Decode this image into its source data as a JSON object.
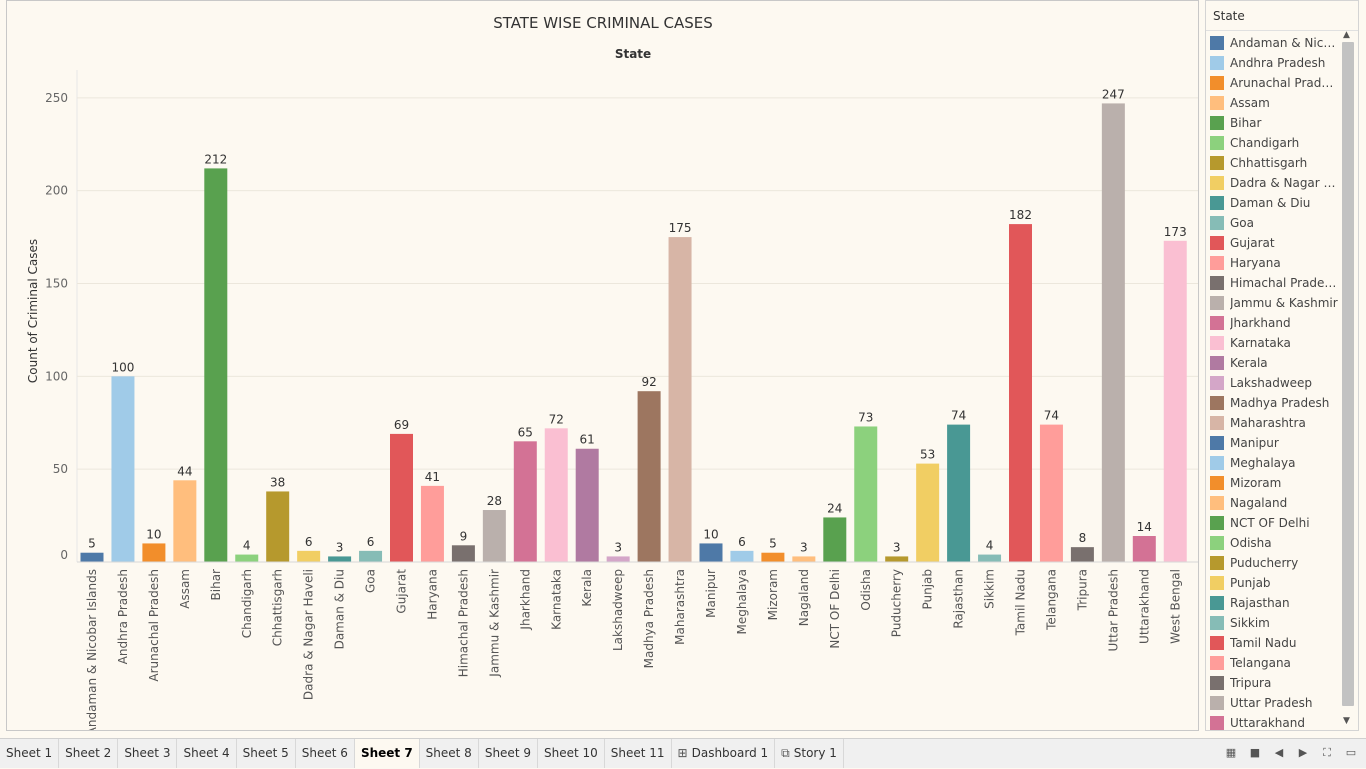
{
  "chart_data": {
    "type": "bar",
    "title": "STATE WISE CRIMINAL CASES",
    "subtitle": "State",
    "ylabel": "Count of Criminal Cases",
    "ylim": [
      0,
      265
    ],
    "yticks": [
      0,
      50,
      100,
      150,
      200,
      250
    ],
    "grid": true,
    "legend_position": "right",
    "categories": [
      "Andaman & Nicobar Islands",
      "Andhra Pradesh",
      "Arunachal Pradesh",
      "Assam",
      "Bihar",
      "Chandigarh",
      "Chhattisgarh",
      "Dadra & Nagar Haveli",
      "Daman & Diu",
      "Goa",
      "Gujarat",
      "Haryana",
      "Himachal Pradesh",
      "Jammu & Kashmir",
      "Jharkhand",
      "Karnataka",
      "Kerala",
      "Lakshadweep",
      "Madhya Pradesh",
      "Maharashtra",
      "Manipur",
      "Meghalaya",
      "Mizoram",
      "Nagaland",
      "NCT OF Delhi",
      "Odisha",
      "Puducherry",
      "Punjab",
      "Rajasthan",
      "Sikkim",
      "Tamil Nadu",
      "Telangana",
      "Tripura",
      "Uttar Pradesh",
      "Uttarakhand",
      "West Bengal"
    ],
    "values": [
      5,
      100,
      10,
      44,
      212,
      4,
      38,
      6,
      3,
      6,
      69,
      41,
      9,
      28,
      65,
      72,
      61,
      3,
      92,
      175,
      10,
      6,
      5,
      3,
      24,
      73,
      3,
      53,
      74,
      4,
      182,
      74,
      8,
      247,
      14,
      173
    ],
    "colors": [
      "#4e79a7",
      "#a0cbe8",
      "#f28e2b",
      "#ffbe7d",
      "#59a14f",
      "#8cd17d",
      "#b6992d",
      "#f1ce63",
      "#499894",
      "#86bcb6",
      "#e15759",
      "#ff9d9a",
      "#79706e",
      "#bab0ac",
      "#d37295",
      "#fabfd2",
      "#b07aa1",
      "#d4a6c8",
      "#9d7660",
      "#d7b5a6",
      "#4e79a7",
      "#a0cbe8",
      "#f28e2b",
      "#ffbe7d",
      "#59a14f",
      "#8cd17d",
      "#b6992d",
      "#f1ce63",
      "#499894",
      "#86bcb6",
      "#e15759",
      "#ff9d9a",
      "#79706e",
      "#bab0ac",
      "#d37295",
      "#fabfd2"
    ]
  },
  "legend": {
    "title": "State",
    "items": [
      "Andaman & Nicob..",
      "Andhra Pradesh",
      "Arunachal Pradesh",
      "Assam",
      "Bihar",
      "Chandigarh",
      "Chhattisgarh",
      "Dadra & Nagar Ha..",
      "Daman & Diu",
      "Goa",
      "Gujarat",
      "Haryana",
      "Himachal Pradesh",
      "Jammu & Kashmir",
      "Jharkhand",
      "Karnataka",
      "Kerala",
      "Lakshadweep",
      "Madhya Pradesh",
      "Maharashtra",
      "Manipur",
      "Meghalaya",
      "Mizoram",
      "Nagaland",
      "NCT OF Delhi",
      "Odisha",
      "Puducherry",
      "Punjab",
      "Rajasthan",
      "Sikkim",
      "Tamil Nadu",
      "Telangana",
      "Tripura",
      "Uttar Pradesh",
      "Uttarakhand"
    ]
  },
  "tabs": [
    {
      "label": "Sheet 1",
      "active": false,
      "icon": ""
    },
    {
      "label": "Sheet 2",
      "active": false,
      "icon": ""
    },
    {
      "label": "Sheet 3",
      "active": false,
      "icon": ""
    },
    {
      "label": "Sheet 4",
      "active": false,
      "icon": ""
    },
    {
      "label": "Sheet 5",
      "active": false,
      "icon": ""
    },
    {
      "label": "Sheet 6",
      "active": false,
      "icon": ""
    },
    {
      "label": "Sheet 7",
      "active": true,
      "icon": ""
    },
    {
      "label": "Sheet 8",
      "active": false,
      "icon": ""
    },
    {
      "label": "Sheet 9",
      "active": false,
      "icon": ""
    },
    {
      "label": "Sheet 10",
      "active": false,
      "icon": ""
    },
    {
      "label": "Sheet 11",
      "active": false,
      "icon": ""
    },
    {
      "label": "Dashboard 1",
      "active": false,
      "icon": "dashboard-icon"
    },
    {
      "label": "Story 1",
      "active": false,
      "icon": "story-icon"
    }
  ],
  "controls": [
    "grid-view-icon",
    "filmstrip-icon",
    "prev-sheet-icon",
    "next-sheet-icon",
    "fit-screen-icon",
    "presentation-mode-icon"
  ]
}
